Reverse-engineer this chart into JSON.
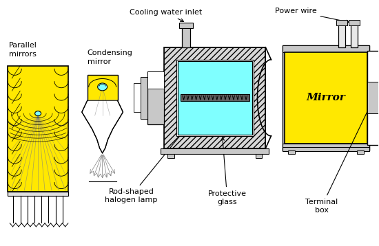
{
  "bg_color": "#ffffff",
  "yellow": "#FFE800",
  "light_cyan": "#7FFFFF",
  "dark": "#000000",
  "gray_fill": "#C8C8C8",
  "labels": {
    "parallel_mirrors": "Parallel\nmirrors",
    "condensing_mirror": "Condensing\nmirror",
    "cooling_water": "Cooling water inlet",
    "power_wire": "Power wire",
    "rod_halogen": "Rod-shaped\nhalogen lamp",
    "protective_glass": "Protective\nglass",
    "terminal_box": "Terminal\nbox",
    "mirror": "Mirror"
  }
}
